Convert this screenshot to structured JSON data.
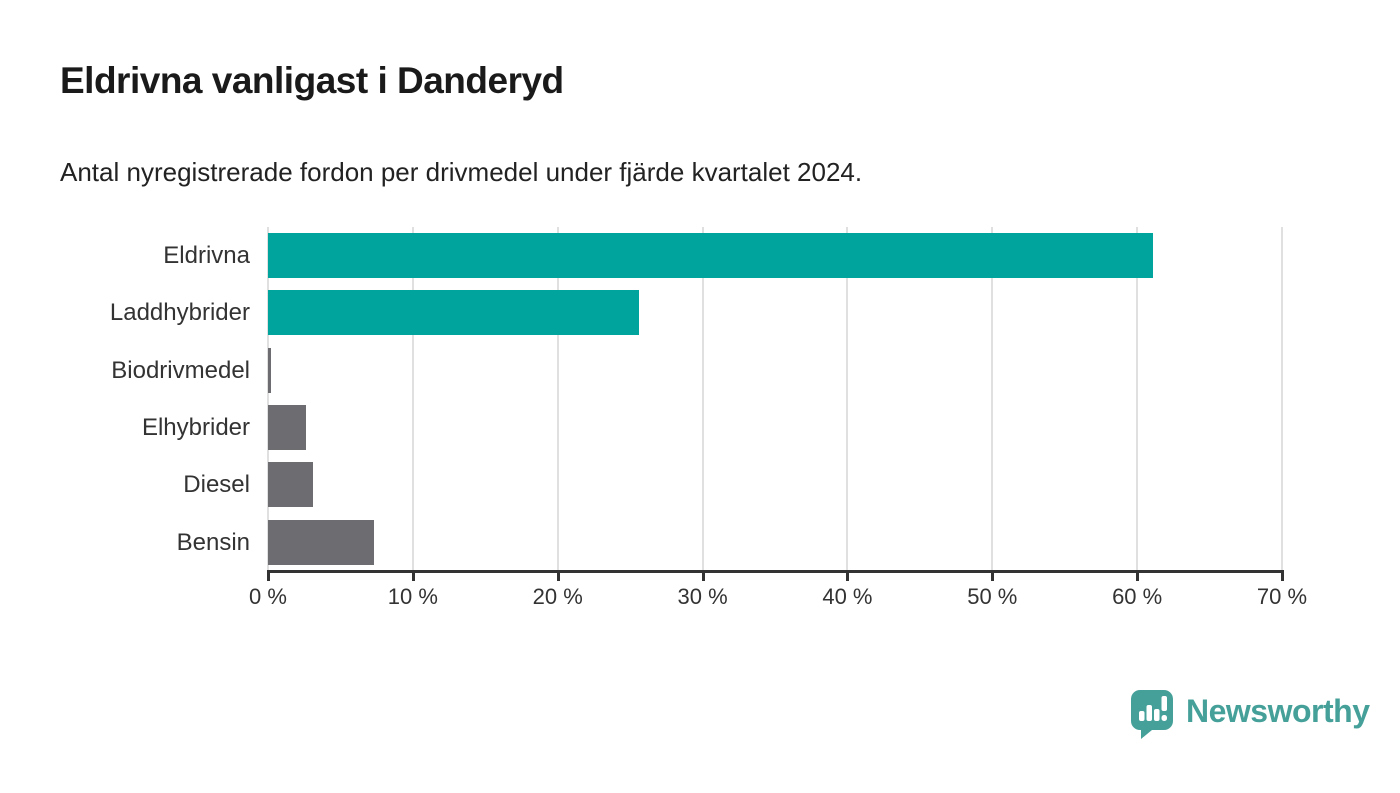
{
  "chart_data": {
    "type": "bar",
    "orientation": "horizontal",
    "title": "Eldrivna vanligast i Danderyd",
    "subtitle": "Antal nyregistrerade fordon per drivmedel under fjärde kvartalet 2024.",
    "categories": [
      "Eldrivna",
      "Laddhybrider",
      "Biodrivmedel",
      "Elhybrider",
      "Diesel",
      "Bensin"
    ],
    "values": [
      61.1,
      25.6,
      0.2,
      2.6,
      3.1,
      7.3
    ],
    "unit": "%",
    "bar_colors": [
      "#00a49c",
      "#00a49c",
      "#6c6c71",
      "#6c6c71",
      "#6c6c71",
      "#6c6c71"
    ],
    "x_ticks": [
      "0 %",
      "10 %",
      "20 %",
      "30 %",
      "40 %",
      "50 %",
      "60 %",
      "70 %"
    ],
    "xlim": [
      0,
      70
    ],
    "grid": "vertical",
    "gridline_color": "#e0e0e0",
    "axis_color": "#333333",
    "legend": "none"
  },
  "colors": {
    "accent_teal": "#00a49c",
    "neutral_gray": "#6c6c71",
    "logo_teal": "#46a09a",
    "text_dark": "#1a1a1a"
  },
  "logo": {
    "icon": "newsworthy-logo-icon",
    "label": "Newsworthy"
  }
}
